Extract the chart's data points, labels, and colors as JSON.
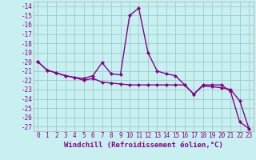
{
  "xlabel": "Windchill (Refroidissement éolien,°C)",
  "hours": [
    0,
    1,
    2,
    3,
    4,
    5,
    6,
    7,
    8,
    9,
    10,
    11,
    12,
    13,
    14,
    15,
    16,
    17,
    18,
    19,
    20,
    21,
    22,
    23
  ],
  "line1": [
    -20.0,
    -20.9,
    -21.2,
    -21.5,
    -21.7,
    -21.8,
    -21.5,
    -20.1,
    -21.3,
    -21.4,
    -15.0,
    -14.2,
    -19.0,
    -21.0,
    -21.3,
    -21.5,
    -22.5,
    -23.5,
    -22.5,
    -22.5,
    -22.5,
    -23.2,
    -26.5,
    -27.2
  ],
  "line2": [
    -20.0,
    -20.9,
    -21.2,
    -21.5,
    -21.7,
    -22.0,
    -21.8,
    -22.2,
    -22.3,
    -22.4,
    -22.5,
    -22.5,
    -22.5,
    -22.5,
    -22.5,
    -22.5,
    -22.5,
    -23.5,
    -22.6,
    -22.7,
    -22.8,
    -23.0,
    -24.2,
    -27.2
  ],
  "line_color": "#880088",
  "bg_color": "#c8f0f0",
  "grid_color": "#99cccc",
  "ylim": [
    -27.5,
    -13.5
  ],
  "yticks": [
    -27,
    -26,
    -25,
    -24,
    -23,
    -22,
    -21,
    -20,
    -19,
    -18,
    -17,
    -16,
    -15,
    -14
  ],
  "xticks": [
    0,
    1,
    2,
    3,
    4,
    5,
    6,
    7,
    8,
    9,
    10,
    11,
    12,
    13,
    14,
    15,
    16,
    17,
    18,
    19,
    20,
    21,
    22,
    23
  ],
  "markersize": 2.5,
  "linewidth": 1.0,
  "tick_fontsize": 5.5,
  "xlabel_fontsize": 6.5
}
